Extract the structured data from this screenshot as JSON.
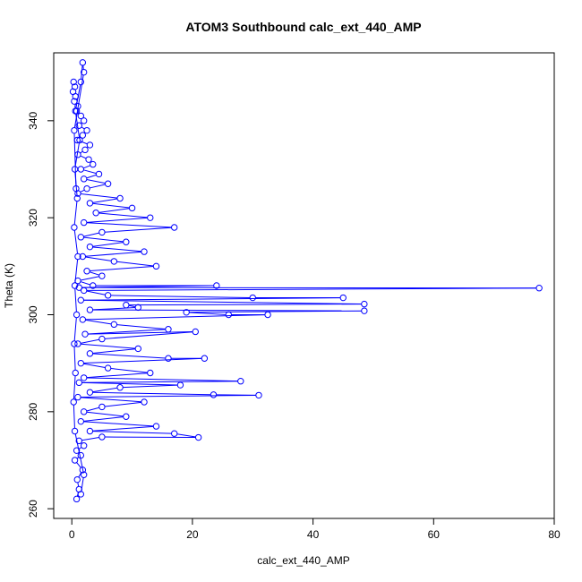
{
  "chart_data": {
    "type": "scatter",
    "title": "ATOM3 Southbound calc_ext_440_AMP",
    "xlabel": "calc_ext_440_AMP",
    "ylabel": "Theta (K)",
    "xlim": [
      -3,
      80
    ],
    "ylim": [
      258,
      354
    ],
    "xticks": [
      0,
      20,
      40,
      60,
      80
    ],
    "yticks": [
      260,
      280,
      300,
      320,
      340
    ],
    "marker": "open-circle",
    "connected": true,
    "grid": false,
    "legend": "none",
    "series_color": "#0000ff",
    "points": [
      [
        0.3,
        348
      ],
      [
        0.5,
        347
      ],
      [
        0.2,
        346
      ],
      [
        0.6,
        345
      ],
      [
        0.4,
        344
      ],
      [
        1.0,
        343
      ],
      [
        0.8,
        342
      ],
      [
        1.5,
        341
      ],
      [
        2.0,
        340
      ],
      [
        1.2,
        339
      ],
      [
        2.5,
        338
      ],
      [
        1.8,
        337
      ],
      [
        0.9,
        336
      ],
      [
        3.0,
        335
      ],
      [
        2.2,
        334
      ],
      [
        1.0,
        333
      ],
      [
        2.8,
        332
      ],
      [
        3.5,
        331
      ],
      [
        1.5,
        330
      ],
      [
        4.5,
        329
      ],
      [
        2.0,
        328
      ],
      [
        6.0,
        327
      ],
      [
        2.5,
        326
      ],
      [
        1.0,
        325
      ],
      [
        8.0,
        324
      ],
      [
        3.0,
        323
      ],
      [
        10.0,
        322
      ],
      [
        4.0,
        321
      ],
      [
        13.0,
        320
      ],
      [
        2.0,
        319
      ],
      [
        17.0,
        318
      ],
      [
        5.0,
        317
      ],
      [
        1.5,
        316
      ],
      [
        9.0,
        315
      ],
      [
        3.0,
        314
      ],
      [
        12.0,
        313
      ],
      [
        1.8,
        312
      ],
      [
        7.0,
        311
      ],
      [
        14.0,
        310
      ],
      [
        2.5,
        309
      ],
      [
        5.0,
        308
      ],
      [
        1.0,
        307
      ],
      [
        3.5,
        306
      ],
      [
        24.0,
        306
      ],
      [
        1.2,
        305.6
      ],
      [
        77.5,
        305.5
      ],
      [
        2.0,
        305
      ],
      [
        6.0,
        304
      ],
      [
        30.0,
        303.5
      ],
      [
        45.0,
        303.5
      ],
      [
        1.5,
        303
      ],
      [
        48.5,
        302.2
      ],
      [
        9.0,
        302
      ],
      [
        11.0,
        301.5
      ],
      [
        3.0,
        301
      ],
      [
        48.5,
        300.8
      ],
      [
        19.0,
        300.5
      ],
      [
        26.0,
        300
      ],
      [
        32.5,
        300
      ],
      [
        1.8,
        299
      ],
      [
        7.0,
        298
      ],
      [
        16.0,
        297
      ],
      [
        2.2,
        296
      ],
      [
        20.5,
        296.5
      ],
      [
        5.0,
        295
      ],
      [
        1.0,
        294
      ],
      [
        11.0,
        293
      ],
      [
        3.0,
        292
      ],
      [
        16.0,
        291
      ],
      [
        22.0,
        291
      ],
      [
        1.5,
        290
      ],
      [
        6.0,
        289
      ],
      [
        13.0,
        288
      ],
      [
        2.0,
        287
      ],
      [
        28.0,
        286.3
      ],
      [
        1.2,
        286
      ],
      [
        18.0,
        285.5
      ],
      [
        8.0,
        285
      ],
      [
        3.0,
        284
      ],
      [
        23.5,
        283.5
      ],
      [
        31.0,
        283.4
      ],
      [
        1.0,
        283
      ],
      [
        12.0,
        282
      ],
      [
        5.0,
        281
      ],
      [
        2.0,
        280
      ],
      [
        9.0,
        279
      ],
      [
        1.5,
        278
      ],
      [
        14.0,
        277
      ],
      [
        3.0,
        276
      ],
      [
        17.0,
        275.5
      ],
      [
        21.0,
        274.7
      ],
      [
        5.0,
        274.8
      ],
      [
        1.2,
        274
      ],
      [
        2.0,
        273
      ],
      [
        0.8,
        272
      ],
      [
        1.5,
        271
      ],
      [
        0.5,
        270
      ],
      [
        1.8,
        268
      ],
      [
        0.9,
        266
      ],
      [
        1.2,
        264
      ],
      [
        0.8,
        262
      ],
      [
        1.5,
        263
      ],
      [
        2.0,
        267
      ],
      [
        0.5,
        276
      ],
      [
        0.3,
        282
      ],
      [
        0.6,
        288
      ],
      [
        0.4,
        294
      ],
      [
        0.8,
        300
      ],
      [
        0.5,
        306
      ],
      [
        1.0,
        312
      ],
      [
        0.4,
        318
      ],
      [
        0.9,
        324
      ],
      [
        0.5,
        330
      ],
      [
        1.3,
        336
      ],
      [
        0.6,
        342
      ],
      [
        1.5,
        348
      ],
      [
        1.8,
        352
      ],
      [
        2.0,
        350
      ],
      [
        0.4,
        338
      ],
      [
        0.7,
        326
      ]
    ]
  }
}
